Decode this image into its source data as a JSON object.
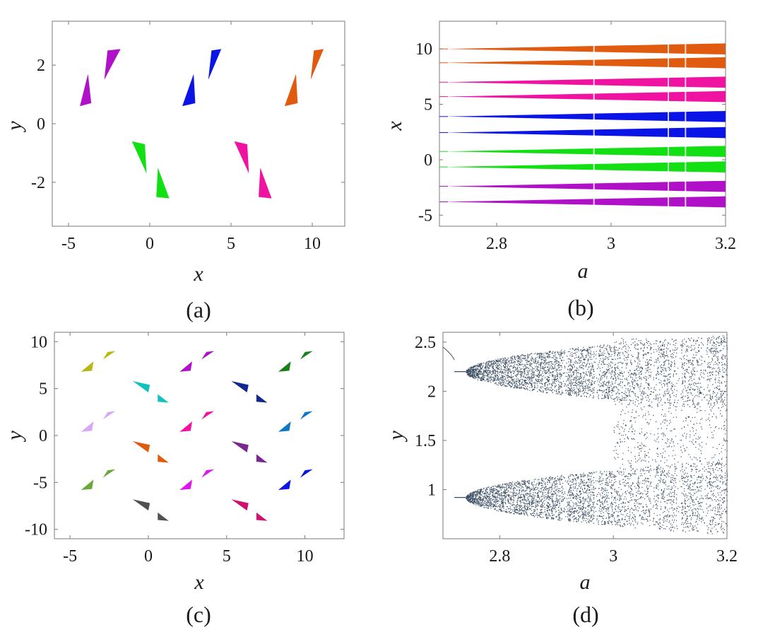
{
  "chart_data": [
    {
      "panel": "a",
      "type": "scatter",
      "caption": "(a)",
      "xlabel": "x",
      "ylabel": "y",
      "xlim": [
        -6,
        12
      ],
      "ylim": [
        -3.5,
        3.5
      ],
      "xticks": [
        "-5",
        "0",
        "5",
        "10"
      ],
      "yticks": [
        "2",
        "0",
        "-2"
      ],
      "xtick_values": [
        -5,
        0,
        5,
        10
      ],
      "ytick_values": [
        2,
        0,
        -2
      ],
      "series": [
        {
          "color": "#b010c8",
          "regions": [
            [
              [
                -4.3,
                0.6
              ],
              [
                -3.8,
                1.7
              ],
              [
                -3.6,
                0.7
              ]
            ],
            [
              [
                -2.8,
                1.5
              ],
              [
                -2.6,
                2.5
              ],
              [
                -1.8,
                2.55
              ]
            ]
          ]
        },
        {
          "color": "#0a14e6",
          "regions": [
            [
              [
                2.0,
                0.6
              ],
              [
                2.7,
                1.7
              ],
              [
                2.8,
                0.7
              ]
            ],
            [
              [
                3.6,
                1.5
              ],
              [
                3.8,
                2.5
              ],
              [
                4.4,
                2.55
              ]
            ]
          ]
        },
        {
          "color": "#e05a10",
          "regions": [
            [
              [
                8.3,
                0.6
              ],
              [
                9.0,
                1.7
              ],
              [
                9.1,
                0.7
              ]
            ],
            [
              [
                9.9,
                1.5
              ],
              [
                10.1,
                2.5
              ],
              [
                10.7,
                2.55
              ]
            ]
          ]
        },
        {
          "color": "#12e012",
          "regions": [
            [
              [
                -1.1,
                -0.6
              ],
              [
                -0.3,
                -0.7
              ],
              [
                -0.2,
                -1.7
              ]
            ],
            [
              [
                0.5,
                -1.5
              ],
              [
                0.4,
                -2.5
              ],
              [
                1.2,
                -2.55
              ]
            ]
          ]
        },
        {
          "color": "#f012a0",
          "regions": [
            [
              [
                5.2,
                -0.6
              ],
              [
                6.0,
                -0.7
              ],
              [
                6.1,
                -1.7
              ]
            ],
            [
              [
                6.8,
                -1.5
              ],
              [
                6.7,
                -2.5
              ],
              [
                7.5,
                -2.55
              ]
            ]
          ]
        }
      ]
    },
    {
      "panel": "b",
      "type": "scatter",
      "caption": "(b)",
      "xlabel": "a",
      "ylabel": "x",
      "xlim": [
        2.7,
        3.2
      ],
      "ylim": [
        -6,
        12.5
      ],
      "xticks": [
        "2.8",
        "3",
        "3.2"
      ],
      "yticks": [
        "10",
        "5",
        "0",
        "-5"
      ],
      "xtick_values": [
        2.8,
        3.0,
        3.2
      ],
      "ytick_values": [
        10,
        5,
        0,
        -5
      ],
      "bands": [
        {
          "color": "#e05a10",
          "center": 10.0,
          "max_width": 1.0
        },
        {
          "color": "#e05a10",
          "center": 8.75,
          "max_width": 1.0
        },
        {
          "color": "#f012a0",
          "center": 7.0,
          "max_width": 1.0
        },
        {
          "color": "#f012a0",
          "center": 5.7,
          "max_width": 1.0
        },
        {
          "color": "#0a14e6",
          "center": 3.9,
          "max_width": 1.0
        },
        {
          "color": "#0a14e6",
          "center": 2.45,
          "max_width": 1.0
        },
        {
          "color": "#12e012",
          "center": 0.75,
          "max_width": 1.0
        },
        {
          "color": "#12e012",
          "center": -0.65,
          "max_width": 1.0
        },
        {
          "color": "#b010c8",
          "center": -2.4,
          "max_width": 1.0
        },
        {
          "color": "#b010c8",
          "center": -3.8,
          "max_width": 1.0
        }
      ],
      "band_start_a": 2.71
    },
    {
      "panel": "c",
      "type": "scatter",
      "caption": "(c)",
      "xlabel": "x",
      "ylabel": "y",
      "xlim": [
        -6,
        12.5
      ],
      "ylim": [
        -11,
        11
      ],
      "xticks": [
        "-5",
        "0",
        "5",
        "10"
      ],
      "yticks": [
        "10",
        "5",
        "0",
        "-5",
        "-10"
      ],
      "xtick_values": [
        -5,
        0,
        5,
        10
      ],
      "ytick_values": [
        10,
        5,
        0,
        -5,
        -10
      ],
      "clusters": [
        {
          "color": "#b8b812",
          "x": -4.0,
          "y": 7.0
        },
        {
          "color": "#b010c8",
          "x": 2.3,
          "y": 7.0
        },
        {
          "color": "#188018",
          "x": 8.6,
          "y": 7.0
        },
        {
          "color": "#12c0c0",
          "x": -0.9,
          "y": 5.5,
          "flip": true
        },
        {
          "color": "#102890",
          "x": 5.4,
          "y": 5.5,
          "flip": true
        },
        {
          "color": "#d8a8f8",
          "x": -4.0,
          "y": 0.6
        },
        {
          "color": "#f012a0",
          "x": 2.3,
          "y": 0.6
        },
        {
          "color": "#1078c0",
          "x": 8.6,
          "y": 0.6
        },
        {
          "color": "#e05a10",
          "x": -0.9,
          "y": -0.9,
          "flip": true
        },
        {
          "color": "#7a2890",
          "x": 5.4,
          "y": -0.9,
          "flip": true
        },
        {
          "color": "#6aa83a",
          "x": -4.0,
          "y": -5.6
        },
        {
          "color": "#e012f0",
          "x": 2.3,
          "y": -5.6
        },
        {
          "color": "#0a14e6",
          "x": 8.6,
          "y": -5.6
        },
        {
          "color": "#505050",
          "x": -0.9,
          "y": -7.1,
          "flip": true
        },
        {
          "color": "#d01070",
          "x": 5.4,
          "y": -7.1,
          "flip": true
        }
      ]
    },
    {
      "panel": "d",
      "type": "scatter",
      "caption": "(d)",
      "xlabel": "a",
      "ylabel": "y",
      "xlim": [
        2.7,
        3.2
      ],
      "ylim": [
        0.5,
        2.6
      ],
      "xticks": [
        "2.8",
        "3",
        "3.2"
      ],
      "yticks": [
        "2.5",
        "2",
        "1.5",
        "1"
      ],
      "xtick_values": [
        2.8,
        3.0,
        3.2
      ],
      "ytick_values": [
        2.5,
        2.0,
        1.5,
        1.0
      ],
      "color": "#3a4e63",
      "branches": [
        {
          "center": 2.2,
          "onset_a": 2.74,
          "spread_max": 0.38
        },
        {
          "center": 0.92,
          "onset_a": 2.74,
          "spread_max": 0.38
        }
      ],
      "merge_a": 3.0,
      "periodic_windows_a": [
        2.915,
        2.97,
        3.07,
        3.115,
        3.16
      ],
      "point_count": 9000
    }
  ]
}
